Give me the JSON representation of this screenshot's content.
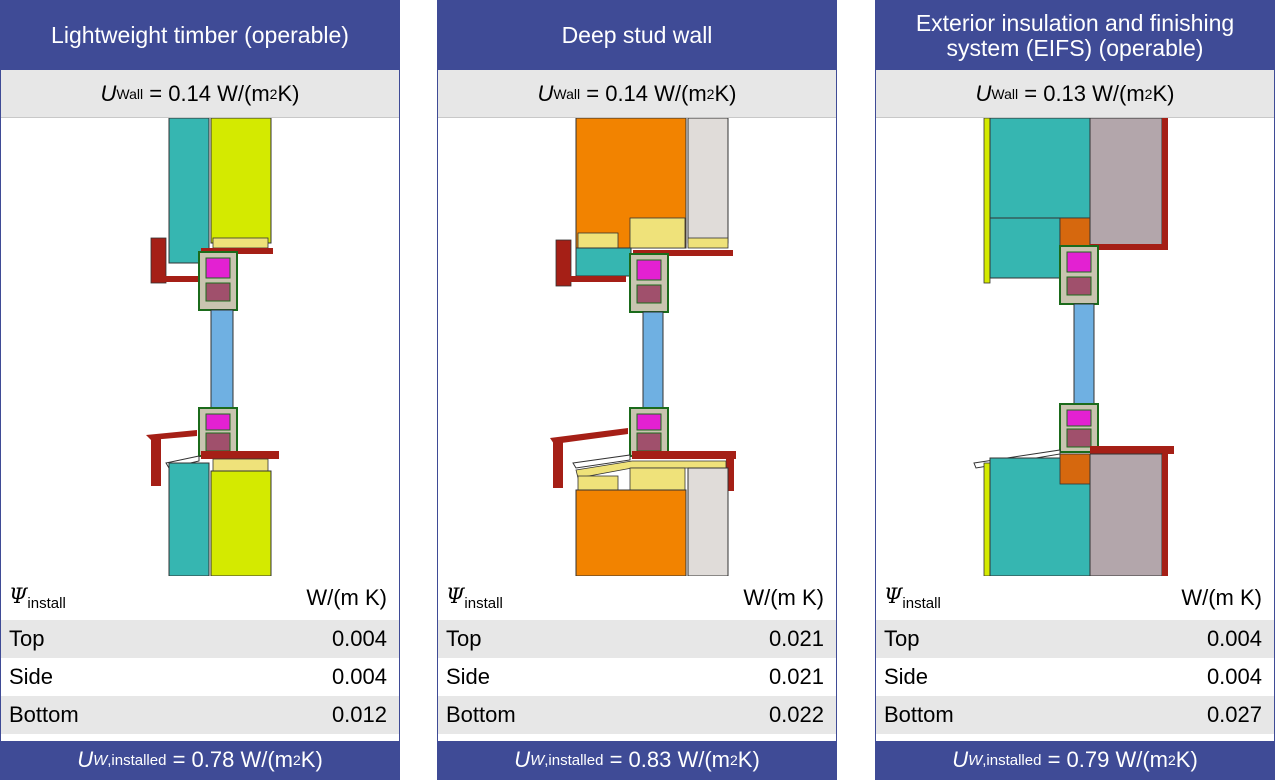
{
  "panels": [
    {
      "title": "Lightweight timber (operable)",
      "u_wall_symbol": "U",
      "u_wall_subscript": "Wall",
      "u_wall_value": "= 0.14 W/(m",
      "u_wall_exp": "2",
      "u_wall_tail": " K)",
      "psi_symbol": "Ψ",
      "psi_subscript": "install",
      "psi_unit": "W/(m K)",
      "rows": [
        {
          "label": "Top",
          "value": "0.004"
        },
        {
          "label": "Side",
          "value": "0.004"
        },
        {
          "label": "Bottom",
          "value": "0.012"
        }
      ],
      "uw_symbol": "U",
      "uw_subscript_italic": "W",
      "uw_subscript": ",installed",
      "uw_value": "= 0.78 W/(m",
      "uw_exp": "2",
      "uw_tail": " K)"
    },
    {
      "title": "Deep stud wall",
      "u_wall_symbol": "U",
      "u_wall_subscript": "Wall",
      "u_wall_value": "= 0.14 W/(m",
      "u_wall_exp": "2",
      "u_wall_tail": " K)",
      "psi_symbol": "Ψ",
      "psi_subscript": "install",
      "psi_unit": "W/(m K)",
      "rows": [
        {
          "label": "Top",
          "value": "0.021"
        },
        {
          "label": "Side",
          "value": "0.021"
        },
        {
          "label": "Bottom",
          "value": "0.022"
        }
      ],
      "uw_symbol": "U",
      "uw_subscript_italic": "W",
      "uw_subscript": ",installed",
      "uw_value": "= 0.83 W/(m",
      "uw_exp": "2",
      "uw_tail": " K)"
    },
    {
      "title": "Exterior insulation and finishing system (EIFS) (operable)",
      "u_wall_symbol": "U",
      "u_wall_subscript": "Wall",
      "u_wall_value": "= 0.13 W/(m",
      "u_wall_exp": "2",
      "u_wall_tail": " K)",
      "psi_symbol": "Ψ",
      "psi_subscript": "install",
      "psi_unit": "W/(m K)",
      "rows": [
        {
          "label": "Top",
          "value": "0.004"
        },
        {
          "label": "Side",
          "value": "0.004"
        },
        {
          "label": "Bottom",
          "value": "0.027"
        }
      ],
      "uw_symbol": "U",
      "uw_subscript_italic": "W",
      "uw_subscript": ",installed",
      "uw_value": "= 0.79 W/(m",
      "uw_exp": "2",
      "uw_tail": " K)"
    }
  ],
  "colors": {
    "header": "#3f4b96",
    "band": "#e7e7e7",
    "insulation_teal": "#36b6b1",
    "insulation_yellow": "#d4ea00",
    "insulation_orange": "#f28300",
    "gypsum_pink": "#b3a6ab",
    "sheathing": "#efe27a",
    "flashing": "#a51f16",
    "glass": "#6fb0e2",
    "frame_magenta": "#e321d2"
  }
}
